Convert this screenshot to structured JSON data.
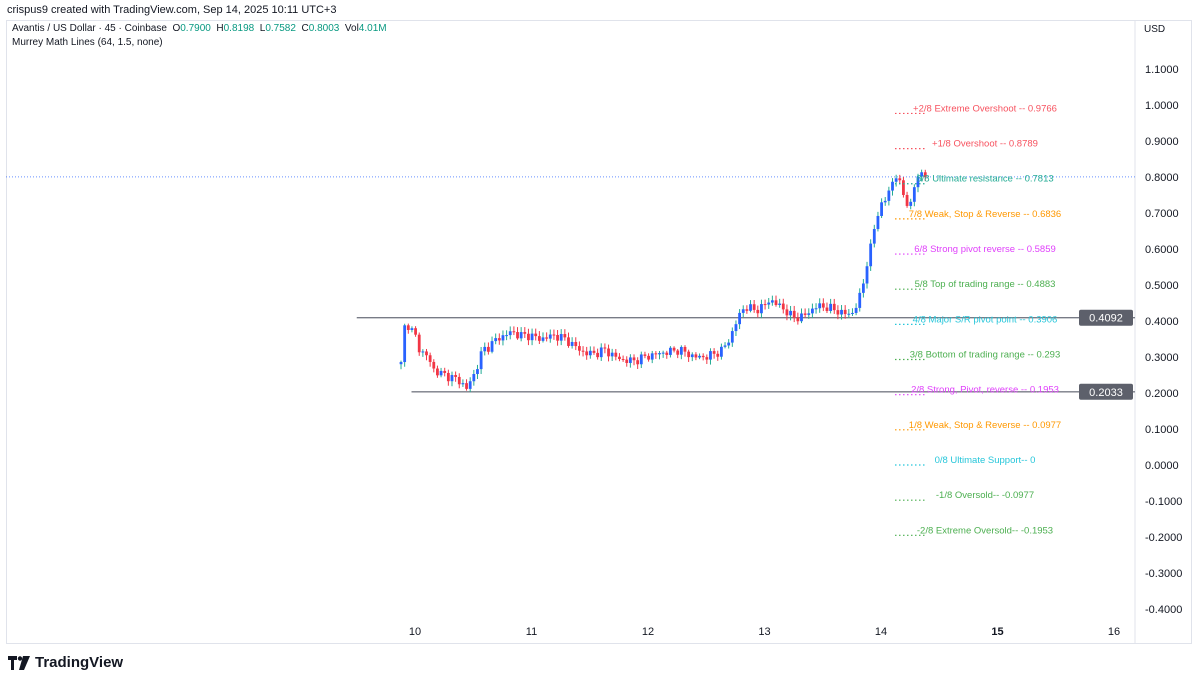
{
  "credit": "crispus9 created with TradingView.com, Sep 14, 2025 10:11 UTC+3",
  "legend": {
    "symbol": "Avantis / US Dollar · 45 · Coinbase",
    "o_label": "O",
    "o": "0.7900",
    "h_label": "H",
    "h": "0.8198",
    "l_label": "L",
    "l": "0.7582",
    "c_label": "C",
    "c": "0.8003",
    "vol_label": "Vol",
    "vol": "4.01M",
    "indicator": "Murrey Math Lines (64, 1.5, none)"
  },
  "currency": "USD",
  "brand": "TradingView",
  "chart_data": {
    "type": "candlestick",
    "interval": "45",
    "ylim": [
      -0.45,
      1.15
    ],
    "y_ticks": [
      "1.1000",
      "1.0000",
      "0.9000",
      "0.8000",
      "0.7000",
      "0.6000",
      "0.5000",
      "0.4000",
      "0.3000",
      "0.2000",
      "0.1000",
      "0.0000",
      "-0.1000",
      "-0.2000",
      "-0.3000",
      "-0.4000"
    ],
    "x_ticks": [
      {
        "day": 10,
        "label": "10"
      },
      {
        "day": 11,
        "label": "11"
      },
      {
        "day": 12,
        "label": "12"
      },
      {
        "day": 13,
        "label": "13"
      },
      {
        "day": 14,
        "label": "14"
      },
      {
        "day": 15,
        "label": "15",
        "bold": true
      },
      {
        "day": 16,
        "label": "16"
      }
    ],
    "price_path": [
      [
        9.88,
        0.28
      ],
      [
        9.9,
        0.38
      ],
      [
        9.94,
        0.39
      ],
      [
        10.0,
        0.36
      ],
      [
        10.04,
        0.32
      ],
      [
        10.11,
        0.3
      ],
      [
        10.17,
        0.26
      ],
      [
        10.26,
        0.25
      ],
      [
        10.34,
        0.24
      ],
      [
        10.4,
        0.23
      ],
      [
        10.44,
        0.21
      ],
      [
        10.52,
        0.26
      ],
      [
        10.58,
        0.32
      ],
      [
        10.64,
        0.33
      ],
      [
        10.7,
        0.35
      ],
      [
        10.77,
        0.36
      ],
      [
        10.83,
        0.37
      ],
      [
        10.9,
        0.36
      ],
      [
        10.99,
        0.36
      ],
      [
        11.07,
        0.35
      ],
      [
        11.2,
        0.36
      ],
      [
        11.29,
        0.35
      ],
      [
        11.37,
        0.33
      ],
      [
        11.46,
        0.31
      ],
      [
        11.55,
        0.31
      ],
      [
        11.63,
        0.32
      ],
      [
        11.72,
        0.3
      ],
      [
        11.8,
        0.29
      ],
      [
        11.89,
        0.29
      ],
      [
        11.97,
        0.3
      ],
      [
        12.1,
        0.31
      ],
      [
        12.27,
        0.32
      ],
      [
        12.4,
        0.3
      ],
      [
        12.49,
        0.3
      ],
      [
        12.58,
        0.31
      ],
      [
        12.64,
        0.32
      ],
      [
        12.7,
        0.35
      ],
      [
        12.75,
        0.39
      ],
      [
        12.79,
        0.42
      ],
      [
        12.83,
        0.44
      ],
      [
        12.92,
        0.43
      ],
      [
        12.99,
        0.44
      ],
      [
        13.05,
        0.46
      ],
      [
        13.09,
        0.45
      ],
      [
        13.18,
        0.43
      ],
      [
        13.24,
        0.41
      ],
      [
        13.3,
        0.41
      ],
      [
        13.37,
        0.42
      ],
      [
        13.43,
        0.44
      ],
      [
        13.52,
        0.44
      ],
      [
        13.61,
        0.43
      ],
      [
        13.69,
        0.42
      ],
      [
        13.75,
        0.42
      ],
      [
        13.8,
        0.45
      ],
      [
        13.84,
        0.49
      ],
      [
        13.87,
        0.55
      ],
      [
        13.91,
        0.6
      ],
      [
        13.95,
        0.67
      ],
      [
        13.99,
        0.72
      ],
      [
        14.03,
        0.73
      ],
      [
        14.08,
        0.77
      ],
      [
        14.12,
        0.81
      ],
      [
        14.16,
        0.78
      ],
      [
        14.21,
        0.74
      ],
      [
        14.25,
        0.71
      ],
      [
        14.29,
        0.78
      ],
      [
        14.33,
        0.82
      ],
      [
        14.38,
        0.79
      ],
      [
        14.4,
        0.8
      ]
    ],
    "last_price": 0.8003,
    "horizontal_lines": [
      {
        "price": 0.4092,
        "label": "0.4092",
        "from_day": 9.5
      },
      {
        "price": 0.2033,
        "label": "0.2033",
        "from_day": 9.97
      }
    ],
    "murrey_levels": [
      {
        "price": 0.9766,
        "label": "+2/8 Extreme Overshoot --  0.9766",
        "color": "#f7525f"
      },
      {
        "price": 0.8789,
        "label": "+1/8 Overshoot --  0.8789",
        "color": "#f7525f"
      },
      {
        "price": 0.7813,
        "label": "8/8 Ultimate resistance --  0.7813",
        "color": "#22ab94"
      },
      {
        "price": 0.6836,
        "label": "7/8 Weak, Stop & Reverse --  0.6836",
        "color": "#ff9800"
      },
      {
        "price": 0.5859,
        "label": "6/8 Strong pivot reverse --  0.5859",
        "color": "#e040fb"
      },
      {
        "price": 0.4883,
        "label": "5/8 Top of trading range --  0.4883",
        "color": "#4caf50"
      },
      {
        "price": 0.3906,
        "label": "4/8 Major S/R pivot point --  0.3906",
        "color": "#26c6da"
      },
      {
        "price": 0.293,
        "label": "3/8 Bottom of trading range --  0.293",
        "color": "#4caf50"
      },
      {
        "price": 0.1953,
        "label": "2/8 Strong, Pivot, reverse --  0.1953",
        "color": "#e040fb"
      },
      {
        "price": 0.0977,
        "label": "1/8 Weak, Stop & Reverse --  0.0977",
        "color": "#ff9800"
      },
      {
        "price": 0,
        "label": "0/8 Ultimate Support--  0",
        "color": "#26c6da"
      },
      {
        "price": -0.0977,
        "label": "-1/8 Oversold--  -0.0977",
        "color": "#4caf50"
      },
      {
        "price": -0.1953,
        "label": "-2/8 Extreme Oversold--  -0.1953",
        "color": "#4caf50"
      }
    ],
    "colors": {
      "up": "#2962ff",
      "down": "#f23645",
      "up_wick": "#22ab94",
      "last_price_line": "#2962ff",
      "hline": "#787b86",
      "label_bg": "#5d606b"
    }
  }
}
